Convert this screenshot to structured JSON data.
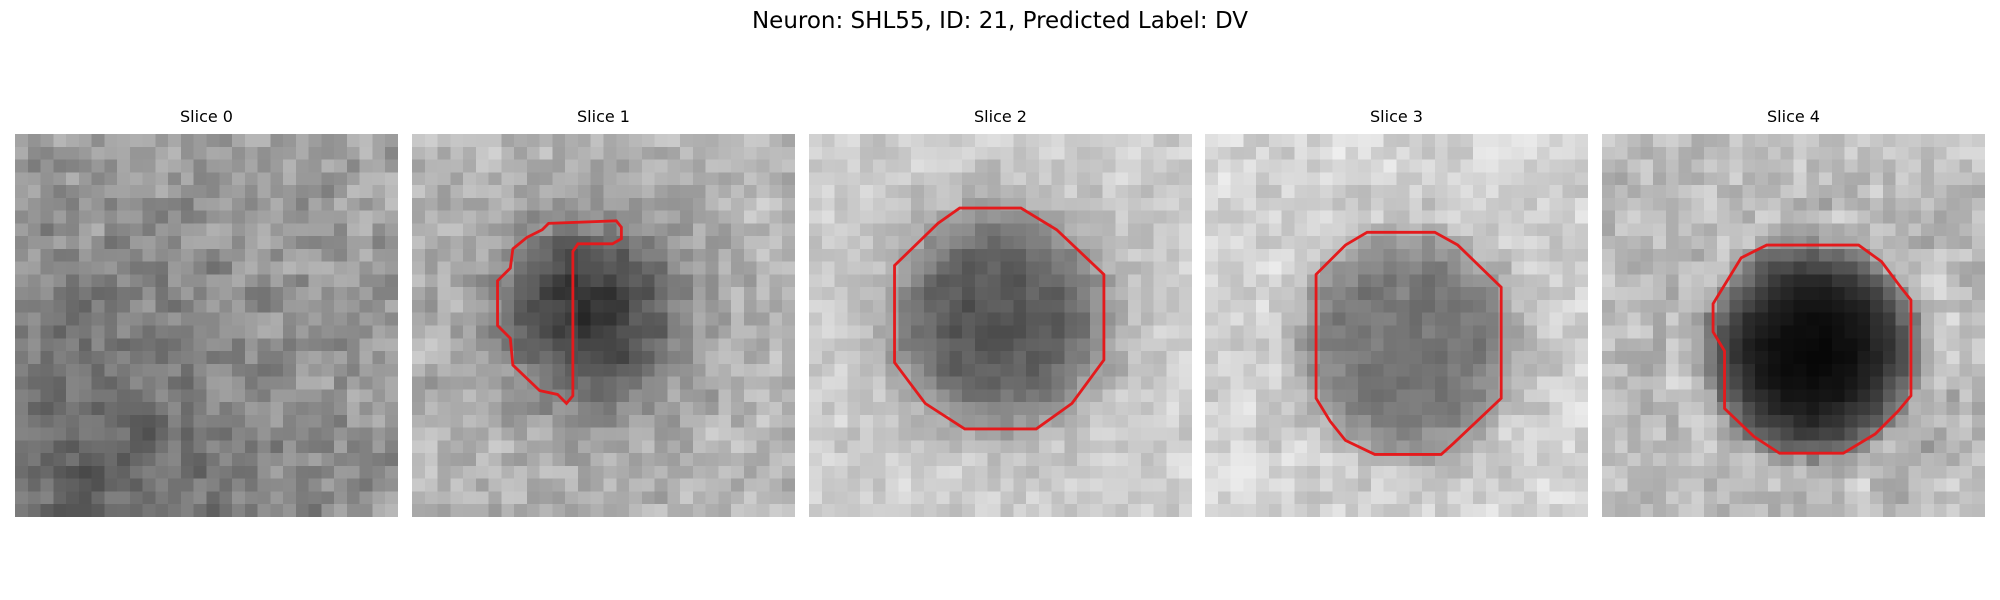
{
  "title": "Neuron: SHL55, ID: 21, Predicted Label: DV",
  "panels": [
    {
      "title": "Slice 0"
    },
    {
      "title": "Slice 1"
    },
    {
      "title": "Slice 2"
    },
    {
      "title": "Slice 3"
    },
    {
      "title": "Slice 4"
    }
  ]
}
